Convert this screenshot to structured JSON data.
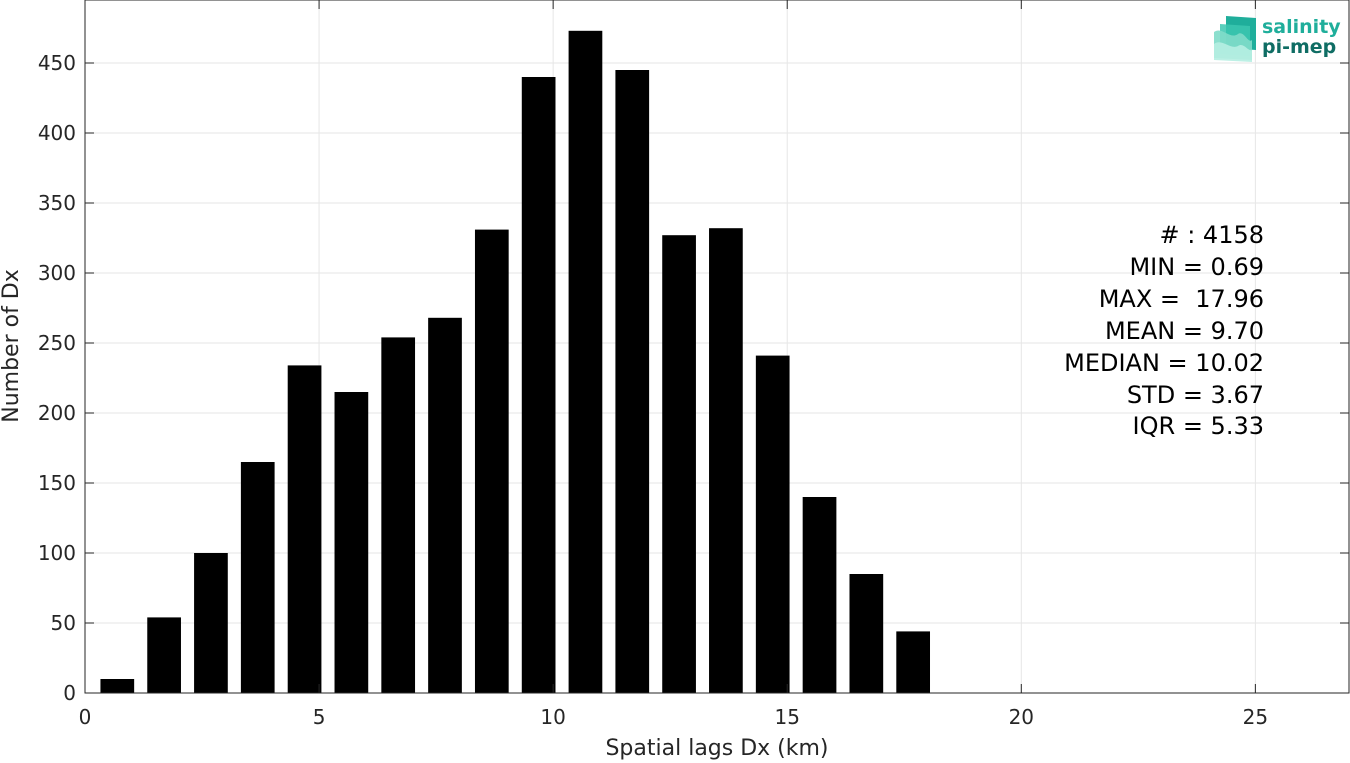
{
  "chart_data": {
    "type": "bar",
    "x": [
      0.69,
      1.69,
      2.69,
      3.69,
      4.69,
      5.69,
      6.69,
      7.69,
      8.69,
      9.69,
      10.69,
      11.69,
      12.69,
      13.69,
      14.69,
      15.69,
      16.69,
      17.69
    ],
    "values": [
      10,
      54,
      100,
      165,
      234,
      215,
      254,
      268,
      331,
      440,
      473,
      445,
      327,
      332,
      241,
      140,
      85,
      44
    ],
    "bar_width": 0.72,
    "xlabel": "Spatial lags Dx (km)",
    "ylabel": "Number of Dx",
    "xlim": [
      0,
      27
    ],
    "ylim": [
      0,
      495
    ],
    "xticks": [
      0,
      5,
      10,
      15,
      20,
      25
    ],
    "yticks": [
      0,
      50,
      100,
      150,
      200,
      250,
      300,
      350,
      400,
      450
    ],
    "grid": true,
    "bar_color": "#000000",
    "grid_color": "#e6e6e6",
    "axis_color": "#262626"
  },
  "stats": {
    "count": "# : 4158",
    "min": "MIN = 0.69",
    "max": "MAX =  17.96",
    "mean": "MEAN = 9.70",
    "median": "MEDIAN = 10.02",
    "std": "STD = 3.67",
    "iqr": "IQR = 5.33"
  },
  "logo": {
    "line1": "salinity",
    "line2": "pi-mep",
    "color1": "#1fae9b",
    "color2": "#0f6d64"
  }
}
